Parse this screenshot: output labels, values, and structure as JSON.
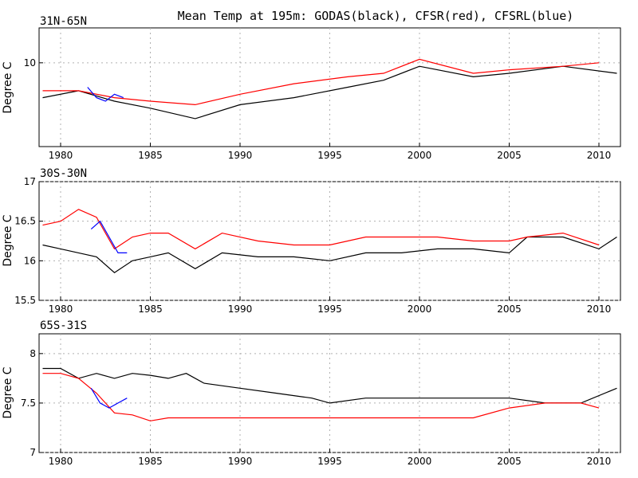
{
  "title": "Mean Temp at 195m: GODAS(black), CFSR(red), CFSRL(blue)",
  "series_colors": {
    "GODAS": "#000000",
    "CFSR": "#ff0000",
    "CFSRL": "#0000ff"
  },
  "chart_data": [
    {
      "type": "line",
      "label": "31N-65N",
      "ylabel": "Degree C",
      "xlim": [
        1978.8,
        2011.2
      ],
      "ylim": [
        7.6,
        11.0
      ],
      "x_ticks": [
        1980,
        1985,
        1990,
        1995,
        2000,
        2005,
        2010
      ],
      "y_ticks": [
        10
      ],
      "grid": true,
      "series": [
        {
          "name": "GODAS",
          "color": "#000000",
          "x": [
            1979,
            1981,
            1983,
            1985,
            1987.5,
            1990,
            1993,
            1996,
            1998,
            2000,
            2003,
            2005,
            2008,
            2011
          ],
          "values": [
            9.0,
            9.2,
            8.9,
            8.7,
            8.4,
            8.8,
            9.0,
            9.3,
            9.5,
            9.9,
            9.6,
            9.7,
            9.9,
            9.7
          ]
        },
        {
          "name": "CFSR",
          "color": "#ff0000",
          "x": [
            1979,
            1981,
            1983,
            1985,
            1987.5,
            1990,
            1993,
            1996,
            1998,
            2000,
            2003,
            2005,
            2008,
            2010
          ],
          "values": [
            9.2,
            9.2,
            9.0,
            8.9,
            8.8,
            9.1,
            9.4,
            9.6,
            9.7,
            10.1,
            9.7,
            9.8,
            9.9,
            10.0
          ]
        },
        {
          "name": "CFSRL",
          "color": "#0000ff",
          "x": [
            1981.5,
            1982.0,
            1982.5,
            1983.0,
            1983.5
          ],
          "values": [
            9.3,
            9.0,
            8.9,
            9.1,
            9.0
          ]
        }
      ]
    },
    {
      "type": "line",
      "label": "30S-30N",
      "ylabel": "Degree C",
      "xlim": [
        1978.8,
        2011.2
      ],
      "ylim": [
        15.5,
        17.0
      ],
      "x_ticks": [
        1980,
        1985,
        1990,
        1995,
        2000,
        2005,
        2010
      ],
      "y_ticks": [
        15.5,
        16,
        16.5,
        17
      ],
      "grid": true,
      "series": [
        {
          "name": "GODAS",
          "color": "#000000",
          "x": [
            1979,
            1980,
            1981,
            1982,
            1983,
            1984,
            1985,
            1986,
            1987.5,
            1989,
            1991,
            1993,
            1995,
            1997,
            1999,
            2001,
            2003,
            2005,
            2006,
            2008,
            2010,
            2011
          ],
          "values": [
            16.2,
            16.15,
            16.1,
            16.05,
            15.85,
            16.0,
            16.05,
            16.1,
            15.9,
            16.1,
            16.05,
            16.05,
            16.0,
            16.1,
            16.1,
            16.15,
            16.15,
            16.1,
            16.3,
            16.3,
            16.15,
            16.3
          ]
        },
        {
          "name": "CFSR",
          "color": "#ff0000",
          "x": [
            1979,
            1980,
            1981,
            1982,
            1983,
            1984,
            1985,
            1986,
            1987.5,
            1989,
            1991,
            1993,
            1995,
            1997,
            1999,
            2001,
            2003,
            2005,
            2006,
            2008,
            2010
          ],
          "values": [
            16.45,
            16.5,
            16.65,
            16.55,
            16.15,
            16.3,
            16.35,
            16.35,
            16.15,
            16.35,
            16.25,
            16.2,
            16.2,
            16.3,
            16.3,
            16.3,
            16.25,
            16.25,
            16.3,
            16.35,
            16.2
          ]
        },
        {
          "name": "CFSRL",
          "color": "#0000ff",
          "x": [
            1981.7,
            1982.2,
            1982.7,
            1983.2,
            1983.7
          ],
          "values": [
            16.4,
            16.5,
            16.3,
            16.1,
            16.1
          ]
        }
      ]
    },
    {
      "type": "line",
      "label": "65S-31S",
      "ylabel": "Degree C",
      "xlim": [
        1978.8,
        2011.2
      ],
      "ylim": [
        7.0,
        8.2
      ],
      "x_ticks": [
        1980,
        1985,
        1990,
        1995,
        2000,
        2005,
        2010
      ],
      "y_ticks": [
        7,
        7.5,
        8
      ],
      "grid": true,
      "series": [
        {
          "name": "GODAS",
          "color": "#000000",
          "x": [
            1979,
            1980,
            1981,
            1982,
            1983,
            1984,
            1985,
            1986,
            1987,
            1988,
            1990,
            1992,
            1994,
            1995,
            1997,
            1999,
            2001,
            2003,
            2005,
            2007,
            2009,
            2011
          ],
          "values": [
            7.85,
            7.85,
            7.75,
            7.8,
            7.75,
            7.8,
            7.78,
            7.75,
            7.8,
            7.7,
            7.65,
            7.6,
            7.55,
            7.5,
            7.55,
            7.55,
            7.55,
            7.55,
            7.55,
            7.5,
            7.5,
            7.65
          ]
        },
        {
          "name": "CFSR",
          "color": "#ff0000",
          "x": [
            1979,
            1980,
            1981,
            1982,
            1983,
            1984,
            1985,
            1986,
            1987,
            1988,
            1990,
            1992,
            1994,
            1995,
            1997,
            1999,
            2001,
            2003,
            2005,
            2007,
            2009,
            2010
          ],
          "values": [
            7.8,
            7.8,
            7.75,
            7.6,
            7.4,
            7.38,
            7.32,
            7.35,
            7.35,
            7.35,
            7.35,
            7.35,
            7.35,
            7.35,
            7.35,
            7.35,
            7.35,
            7.35,
            7.45,
            7.5,
            7.5,
            7.45
          ]
        },
        {
          "name": "CFSRL",
          "color": "#0000ff",
          "x": [
            1981.7,
            1982.2,
            1982.7,
            1983.2,
            1983.7
          ],
          "values": [
            7.65,
            7.5,
            7.45,
            7.5,
            7.55
          ]
        }
      ]
    }
  ]
}
